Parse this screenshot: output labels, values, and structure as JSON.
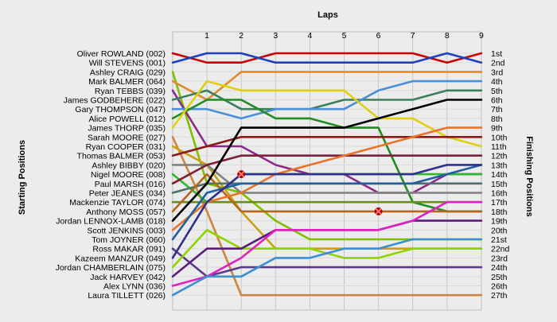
{
  "chart_data": {
    "type": "line",
    "title": "Laps",
    "ylabel_left": "Starting Positions",
    "ylabel_right": "Finishing Positions",
    "laps": [
      1,
      2,
      3,
      4,
      5,
      6,
      7,
      8,
      9
    ],
    "x_ticks": [
      "1",
      "2",
      "3",
      "4",
      "5",
      "6",
      "7",
      "8",
      "9"
    ],
    "finish_labels": [
      "1st",
      "2nd",
      "3rd",
      "4th",
      "5th",
      "6th",
      "7th",
      "8th",
      "9th",
      "10th",
      "11th",
      "12th",
      "13th",
      "14th",
      "15th",
      "16th",
      "17th",
      "18th",
      "19th",
      "20th",
      "21st",
      "22nd",
      "23rd",
      "24th",
      "25th",
      "26th",
      "27th"
    ],
    "series": [
      {
        "name": "Oliver ROWLAND (002)",
        "color": "#cc0000",
        "positions": [
          1,
          2,
          2,
          1,
          1,
          1,
          1,
          1,
          2,
          1
        ]
      },
      {
        "name": "Will STEVENS (001)",
        "color": "#1f3fbf",
        "positions": [
          2,
          1,
          1,
          2,
          2,
          2,
          2,
          2,
          1,
          2
        ]
      },
      {
        "name": "Ashley CRAIG (029)",
        "color": "#7fbf00",
        "positions": [
          3,
          15,
          16,
          19,
          21,
          21,
          21,
          21,
          21,
          21
        ]
      },
      {
        "name": "Mark BALMER (064)",
        "color": "#e08a2c",
        "positions": [
          4,
          6,
          3,
          3,
          3,
          3,
          3,
          3,
          3,
          3
        ]
      },
      {
        "name": "Ryan TEBBS (039)",
        "color": "#8b2a88",
        "positions": [
          5,
          11,
          11,
          13,
          14,
          14,
          16,
          16,
          14,
          14
        ]
      },
      {
        "name": "James GODBEHERE (022)",
        "color": "#3b7f5b",
        "positions": [
          6,
          5,
          7,
          7,
          7,
          6,
          6,
          6,
          5,
          5
        ]
      },
      {
        "name": "Gary THOMPSON (047)",
        "color": "#4a90d9",
        "positions": [
          7,
          7,
          8,
          7,
          7,
          7,
          5,
          4,
          4,
          4
        ]
      },
      {
        "name": "Alice POWELL (012)",
        "color": "#228b22",
        "positions": [
          8,
          6,
          6,
          8,
          8,
          9,
          9,
          17,
          18,
          18
        ]
      },
      {
        "name": "James THORP (035)",
        "color": "#e0d010",
        "positions": [
          9,
          4,
          5,
          5,
          5,
          5,
          8,
          8,
          10,
          11
        ]
      },
      {
        "name": "Sarah MOORE (027)",
        "color": "#cd853f",
        "positions": [
          10,
          18,
          27,
          27,
          27,
          27,
          27,
          27,
          27,
          27
        ]
      },
      {
        "name": "Ryan COOPER (031)",
        "color": "#c8a010",
        "positions": [
          11,
          13,
          18,
          22,
          22,
          22,
          22,
          22,
          22,
          22
        ]
      },
      {
        "name": "Thomas BALMER (053)",
        "color": "#8b1a1a",
        "positions": [
          12,
          11,
          10,
          10,
          10,
          10,
          10,
          10,
          10,
          10
        ]
      },
      {
        "name": "Ashley BIBBY (020)",
        "color": "#808080",
        "positions": [
          13,
          13,
          16,
          16,
          16,
          16,
          16,
          16,
          16,
          16
        ]
      },
      {
        "name": "Nigel MOORE (008)",
        "color": "#2eb82e",
        "positions": [
          14,
          17,
          14,
          14,
          14,
          14,
          14,
          14,
          14,
          14
        ]
      },
      {
        "name": "Paul MARSH (016)",
        "color": "#7b1f3b",
        "positions": [
          15,
          13,
          12,
          12,
          12,
          12,
          12,
          12,
          12,
          12
        ]
      },
      {
        "name": "Peter JEANES (034)",
        "color": "#4f6f6f",
        "positions": [
          16,
          15,
          15,
          15,
          15,
          15,
          15,
          15,
          15,
          15
        ]
      },
      {
        "name": "Mackenzie TAYLOR (074)",
        "color": "#6b8e23",
        "positions": [
          17,
          17,
          17,
          17,
          17,
          17,
          17,
          17,
          17,
          17
        ]
      },
      {
        "name": "Anthony MOSS (057)",
        "color": "#b5651d",
        "positions": [
          18,
          14,
          18,
          18,
          18,
          18,
          18,
          18,
          18,
          18
        ]
      },
      {
        "name": "Jordan LENNOX-LAMB (018)",
        "color": "#000000",
        "positions": [
          19,
          15,
          9,
          9,
          9,
          9,
          8,
          7,
          6,
          6
        ]
      },
      {
        "name": "Scott JENKINS (003)",
        "color": "#e8732a",
        "positions": [
          20,
          17,
          16,
          14,
          13,
          12,
          11,
          10,
          9,
          9
        ]
      },
      {
        "name": "Tom JOYNER (060)",
        "color": "#1e5f9f",
        "positions": [
          21,
          16,
          15,
          15,
          15,
          15,
          15,
          15,
          14,
          13
        ]
      },
      {
        "name": "Ross MAKAR (091)",
        "color": "#5b3a8b",
        "positions": [
          22,
          25,
          24,
          24,
          24,
          24,
          24,
          24,
          24,
          24
        ]
      },
      {
        "name": "Kazeem MANZUR (049)",
        "color": "#2f2f8f",
        "positions": [
          23,
          17,
          14,
          14,
          14,
          14,
          14,
          14,
          13,
          13
        ]
      },
      {
        "name": "Jordan CHAMBERLAIN (075)",
        "color": "#8fd400",
        "positions": [
          24,
          20,
          22,
          22,
          22,
          23,
          23,
          22,
          22,
          22
        ]
      },
      {
        "name": "Jack HARVEY (042)",
        "color": "#5a1e7a",
        "positions": [
          25,
          22,
          22,
          20,
          20,
          20,
          20,
          19,
          19,
          19
        ]
      },
      {
        "name": "Alex LYNN (036)",
        "color": "#e020c0",
        "positions": [
          26,
          25,
          23,
          20,
          20,
          20,
          20,
          19,
          17,
          17
        ]
      },
      {
        "name": "Laura TILLETT (026)",
        "color": "#3c8fd0",
        "positions": [
          27,
          25,
          25,
          23,
          23,
          22,
          22,
          21,
          21,
          21
        ]
      }
    ],
    "retirements": [
      {
        "driver": "Nigel MOORE (008)",
        "lap": 2,
        "position": 14
      },
      {
        "driver": "Anthony MOSS (057)",
        "lap": 6,
        "position": 18
      }
    ],
    "grid": true
  }
}
